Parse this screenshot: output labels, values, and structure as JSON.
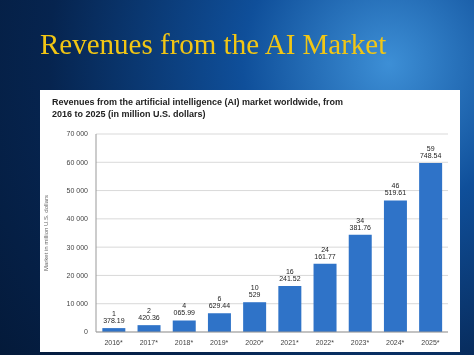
{
  "slide": {
    "title": "Revenues from the AI Market"
  },
  "chart_data": {
    "type": "bar",
    "title": "Revenues from the artificial intelligence (AI) market worldwide, from 2016 to 2025 (in million U.S. dollars)",
    "y_label": "Market in million U.S. dollars",
    "categories": [
      "2016*",
      "2017*",
      "2018*",
      "2019*",
      "2020*",
      "2021*",
      "2022*",
      "2023*",
      "2024*",
      "2025*"
    ],
    "values": [
      1378.19,
      2420.36,
      4065.99,
      6629.44,
      10529,
      16241.52,
      24161.77,
      34381.76,
      46519.61,
      59748.54
    ],
    "value_labels": [
      "1 378.19",
      "2 420.36",
      "4 065.99",
      "6 629.44",
      "10 529",
      "16 241.52",
      "24 161.77",
      "34 381.76",
      "46 519.61",
      "59 748.54"
    ],
    "color": "#2f73c8",
    "ylim": [
      0,
      70000
    ],
    "yticks": [
      0,
      {
        "value": 10000,
        "label": "10 000"
      },
      {
        "value": 20000,
        "label": "20 000"
      },
      {
        "value": 30000,
        "label": "30 000"
      },
      {
        "value": 40000,
        "label": "40 000"
      },
      {
        "value": 50000,
        "label": "50 000"
      },
      {
        "value": 60000,
        "label": "60 000"
      },
      {
        "value": 70000,
        "label": "70 000"
      }
    ],
    "grid": true,
    "data_labels": true
  }
}
